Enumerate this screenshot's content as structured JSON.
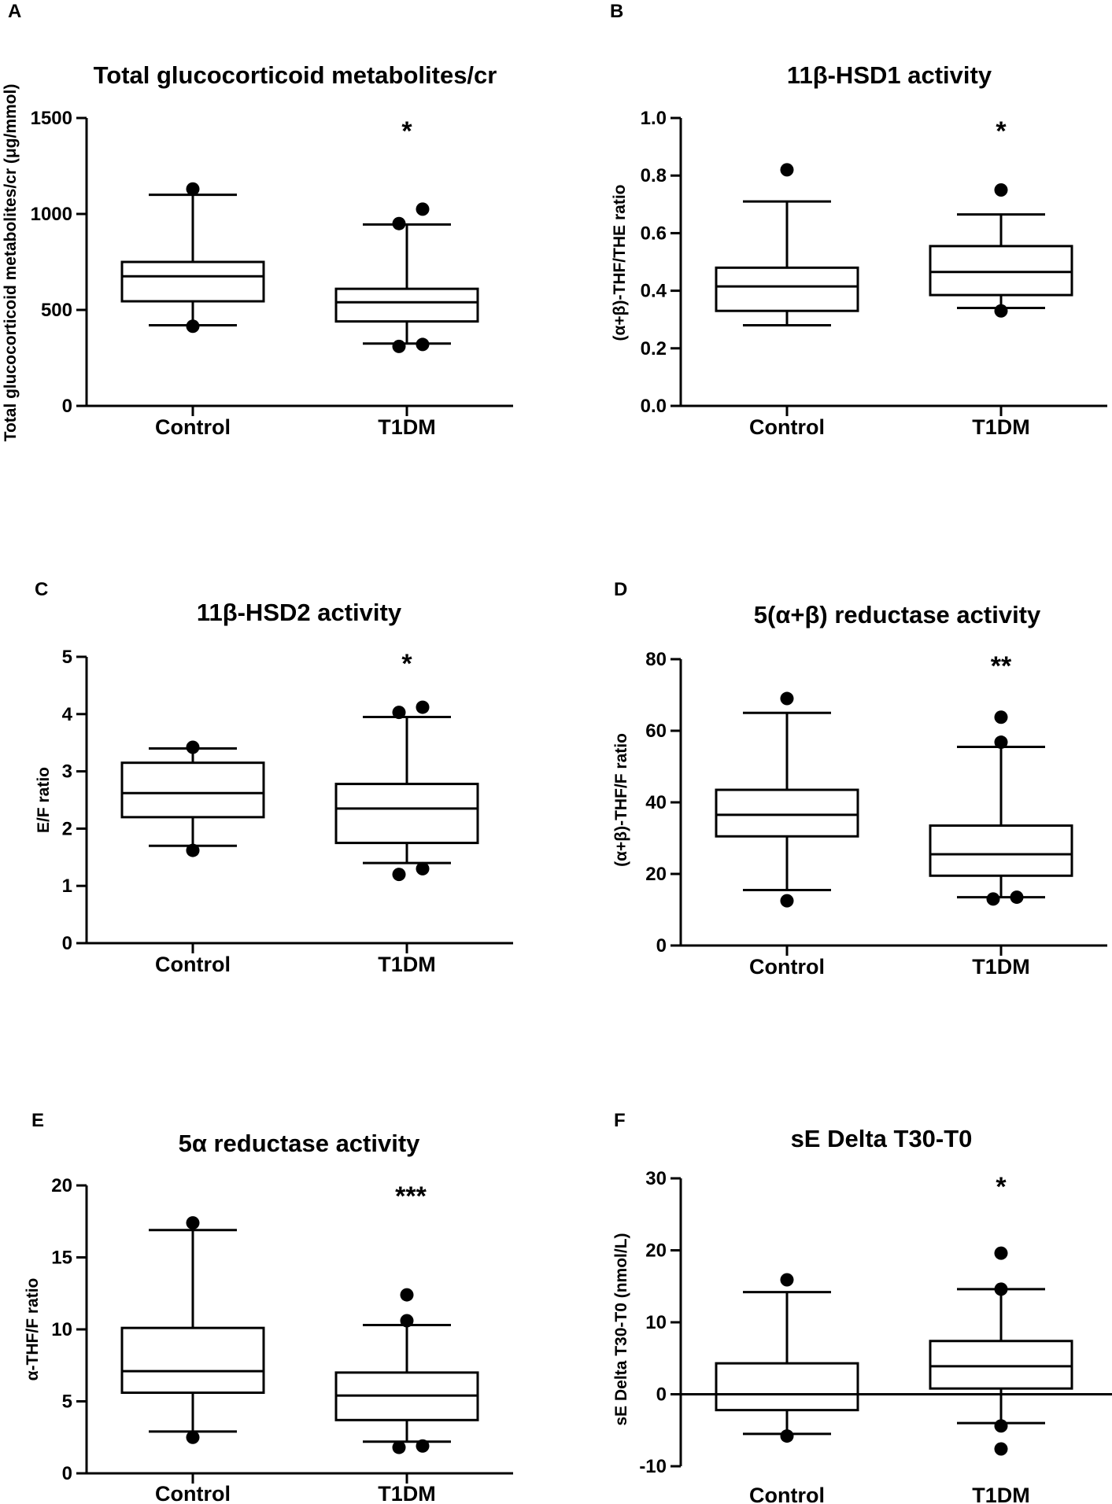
{
  "figure": {
    "panels": [
      "A",
      "B",
      "C",
      "D",
      "E",
      "F"
    ]
  },
  "chart_data": [
    {
      "panel": "A",
      "type": "box",
      "title": "Total glucocorticoid metabolites/cr",
      "ylabel": "Total glucocorticoid metabolites/cr (μg/mmol)",
      "xlabel": "",
      "ylim": [
        0,
        1500
      ],
      "yticks": [
        0,
        500,
        1000,
        1500
      ],
      "categories": [
        "Control",
        "T1DM"
      ],
      "significance": [
        "",
        "*"
      ],
      "boxes": [
        {
          "whisker_low": 420,
          "q1": 545,
          "median": 675,
          "q3": 750,
          "whisker_high": 1100,
          "outliers": [
            415,
            1130
          ]
        },
        {
          "whisker_low": 325,
          "q1": 440,
          "median": 540,
          "q3": 610,
          "whisker_high": 945,
          "outliers": [
            310,
            320,
            950,
            1025
          ]
        }
      ]
    },
    {
      "panel": "B",
      "type": "box",
      "title": "11β-HSD1 activity",
      "ylabel": "(α+β)-THF/THE ratio",
      "xlabel": "",
      "ylim": [
        0,
        1.0
      ],
      "yticks": [
        0.0,
        0.2,
        0.4,
        0.6,
        0.8,
        1.0
      ],
      "ytick_labels": [
        "0.0",
        "0.2",
        "0.4",
        "0.6",
        "0.8",
        "1.0"
      ],
      "categories": [
        "Control",
        "T1DM"
      ],
      "significance": [
        "",
        "*"
      ],
      "boxes": [
        {
          "whisker_low": 0.28,
          "q1": 0.33,
          "median": 0.415,
          "q3": 0.48,
          "whisker_high": 0.71,
          "outliers": [
            0.82
          ]
        },
        {
          "whisker_low": 0.34,
          "q1": 0.385,
          "median": 0.465,
          "q3": 0.555,
          "whisker_high": 0.665,
          "outliers": [
            0.33,
            0.75
          ]
        }
      ]
    },
    {
      "panel": "C",
      "type": "box",
      "title": "11β-HSD2 activity",
      "ylabel": "E/F ratio",
      "xlabel": "",
      "ylim": [
        0,
        5
      ],
      "yticks": [
        0,
        1,
        2,
        3,
        4,
        5
      ],
      "categories": [
        "Control",
        "T1DM"
      ],
      "significance": [
        "",
        "*"
      ],
      "boxes": [
        {
          "whisker_low": 1.7,
          "q1": 2.2,
          "median": 2.62,
          "q3": 3.15,
          "whisker_high": 3.4,
          "outliers": [
            1.62,
            3.42
          ]
        },
        {
          "whisker_low": 1.4,
          "q1": 1.75,
          "median": 2.35,
          "q3": 2.78,
          "whisker_high": 3.95,
          "outliers": [
            1.2,
            1.3,
            4.03,
            4.12
          ]
        }
      ]
    },
    {
      "panel": "D",
      "type": "box",
      "title": "5(α+β) reductase activity",
      "ylabel": "(α+β)-THF/F ratio",
      "xlabel": "",
      "ylim": [
        0,
        80
      ],
      "yticks": [
        0,
        20,
        40,
        60,
        80
      ],
      "categories": [
        "Control",
        "T1DM"
      ],
      "significance": [
        "",
        "**"
      ],
      "boxes": [
        {
          "whisker_low": 15.5,
          "q1": 30.5,
          "median": 36.5,
          "q3": 43.5,
          "whisker_high": 65,
          "outliers": [
            12.5,
            69
          ]
        },
        {
          "whisker_low": 13.5,
          "q1": 19.5,
          "median": 25.5,
          "q3": 33.5,
          "whisker_high": 55.5,
          "outliers": [
            13,
            13.5,
            56.8,
            63.8
          ]
        }
      ]
    },
    {
      "panel": "E",
      "type": "box",
      "title": "5α reductase activity",
      "ylabel": "α-THF/F ratio",
      "xlabel": "",
      "ylim": [
        0,
        20
      ],
      "yticks": [
        0,
        5,
        10,
        15,
        20
      ],
      "categories": [
        "Control",
        "T1DM"
      ],
      "significance": [
        "",
        "***"
      ],
      "boxes": [
        {
          "whisker_low": 2.9,
          "q1": 5.6,
          "median": 7.1,
          "q3": 10.1,
          "whisker_high": 16.9,
          "outliers": [
            2.5,
            17.4
          ]
        },
        {
          "whisker_low": 2.2,
          "q1": 3.7,
          "median": 5.4,
          "q3": 7.0,
          "whisker_high": 10.3,
          "outliers": [
            1.8,
            1.9,
            10.6,
            12.4
          ]
        }
      ]
    },
    {
      "panel": "F",
      "type": "box",
      "title": "sE Delta T30-T0",
      "ylabel": "sE Delta T30-T0 (nmol/L)",
      "xlabel": "",
      "ylim": [
        -10,
        30
      ],
      "yticks": [
        -10,
        0,
        10,
        20,
        30
      ],
      "zero_line": true,
      "categories": [
        "Control",
        "T1DM"
      ],
      "significance": [
        "",
        "*"
      ],
      "boxes": [
        {
          "whisker_low": -5.5,
          "q1": -2.2,
          "median": 0,
          "q3": 4.3,
          "whisker_high": 14.2,
          "outliers": [
            -5.8,
            15.9
          ]
        },
        {
          "whisker_low": -4.0,
          "q1": 0.8,
          "median": 3.9,
          "q3": 7.4,
          "whisker_high": 14.6,
          "outliers": [
            -7.6,
            -4.4,
            14.6,
            19.6
          ]
        }
      ]
    }
  ]
}
